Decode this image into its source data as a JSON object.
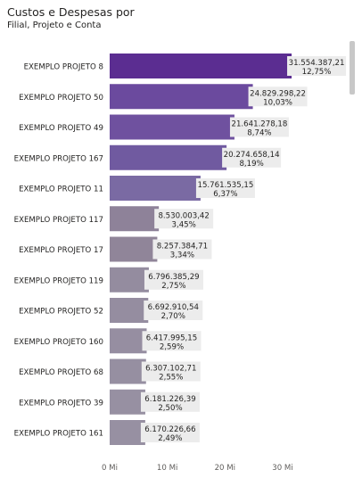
{
  "header": {
    "title": "Custos e Despesas por",
    "subtitle": "Filial, Projeto e Conta"
  },
  "chart_data": {
    "type": "bar",
    "orientation": "horizontal",
    "title": "Custos e Despesas por Filial, Projeto e Conta",
    "xlabel": "",
    "ylabel": "",
    "xlim": [
      0,
      34000000
    ],
    "x_ticks": [
      0,
      10000000,
      20000000,
      30000000
    ],
    "x_tick_labels": [
      "0 Mi",
      "10 Mi",
      "20 Mi",
      "30 Mi"
    ],
    "grid": false,
    "categories": [
      "EXEMPLO PROJETO 8",
      "EXEMPLO PROJETO 50",
      "EXEMPLO PROJETO 49",
      "EXEMPLO PROJETO 167",
      "EXEMPLO PROJETO 11",
      "EXEMPLO PROJETO 117",
      "EXEMPLO PROJETO 17",
      "EXEMPLO PROJETO 119",
      "EXEMPLO PROJETO 52",
      "EXEMPLO PROJETO 160",
      "EXEMPLO PROJETO 68",
      "EXEMPLO PROJETO 39",
      "EXEMPLO PROJETO 161"
    ],
    "values": [
      31554387.21,
      24829298.22,
      21641278.18,
      20274658.14,
      15761535.15,
      8530003.42,
      8257384.71,
      6796385.29,
      6692910.54,
      6417995.15,
      6307102.71,
      6181226.39,
      6170226.66
    ],
    "value_labels": [
      "31.554.387,21",
      "24.829.298,22",
      "21.641.278,18",
      "20.274.658,14",
      "15.761.535,15",
      "8.530.003,42",
      "8.257.384,71",
      "6.796.385,29",
      "6.692.910,54",
      "6.417.995,15",
      "6.307.102,71",
      "6.181.226,39",
      "6.170.226,66"
    ],
    "percent_labels": [
      "12,75%",
      "10,03%",
      "8,74%",
      "8,19%",
      "6,37%",
      "3,45%",
      "3,34%",
      "2,75%",
      "2,70%",
      "2,59%",
      "2,55%",
      "2,50%",
      "2,49%"
    ],
    "bar_colors": [
      "#5b2d91",
      "#6b4a9e",
      "#6f519f",
      "#705aa0",
      "#7a6aa3",
      "#8e8299",
      "#908599",
      "#948c9f",
      "#958da0",
      "#968ea1",
      "#968fa1",
      "#9790a2",
      "#9790a2"
    ],
    "label_background": "#ececec"
  }
}
